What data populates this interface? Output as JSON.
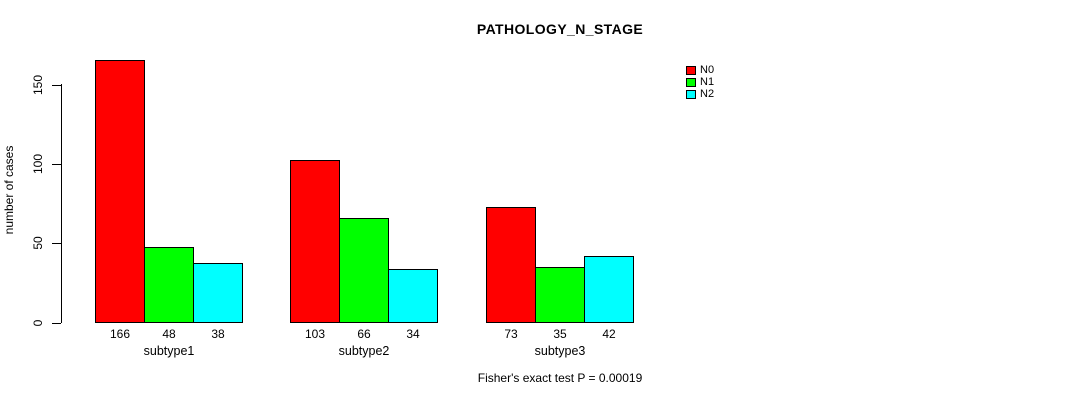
{
  "title": "PATHOLOGY_N_STAGE",
  "y_axis": {
    "label": "number of cases",
    "ticks": [
      0,
      50,
      100,
      150
    ]
  },
  "footer": "Fisher's exact test P = 0.00019",
  "legend": {
    "position": "top-right",
    "entries": [
      {
        "label": "N0",
        "color": "#FF0000"
      },
      {
        "label": "N1",
        "color": "#00FF00"
      },
      {
        "label": "N2",
        "color": "#00FFFF"
      }
    ]
  },
  "chart_data": {
    "type": "bar",
    "title": "PATHOLOGY_N_STAGE",
    "xlabel": "",
    "ylabel": "number of cases",
    "ylim": [
      0,
      170
    ],
    "yticks": [
      0,
      50,
      100,
      150
    ],
    "grid": false,
    "legend_position": "top-right",
    "categories": [
      "subtype1",
      "subtype2",
      "subtype3"
    ],
    "series": [
      {
        "name": "N0",
        "color": "#FF0000",
        "values": [
          166,
          103,
          73
        ]
      },
      {
        "name": "N1",
        "color": "#00FF00",
        "values": [
          48,
          66,
          35
        ]
      },
      {
        "name": "N2",
        "color": "#00FFFF",
        "values": [
          38,
          34,
          42
        ]
      }
    ],
    "bar_value_labels": true,
    "annotation": "Fisher's exact test P = 0.00019"
  },
  "colors": {
    "background": "#FFFFFF",
    "axis": "#000000",
    "text": "#000000"
  }
}
